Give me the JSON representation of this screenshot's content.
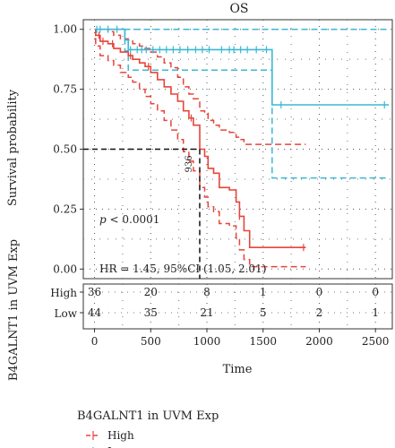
{
  "chart_data": {
    "type": "line",
    "title": "OS",
    "ylabel": "Survival probability",
    "xlabel": "Time",
    "xlim": [
      -100,
      2650
    ],
    "ylim": [
      -0.04,
      1.04
    ],
    "x_ticks": [
      "0",
      "500",
      "1000",
      "1500",
      "2000",
      "2500"
    ],
    "x_tick_values": [
      0,
      500,
      1000,
      1500,
      2000,
      2500
    ],
    "y_ticks": [
      "0.00",
      "0.25",
      "0.50",
      "0.75",
      "1.00"
    ],
    "y_tick_values": [
      0,
      0.25,
      0.5,
      0.75,
      1.0
    ],
    "grid": "dotted",
    "pvalue_prefix": "p",
    "pvalue_suffix": " < 0.0001",
    "hr_text": "HR = 1.45, 95%CI (1.05, 2.01)",
    "median_label": "936",
    "median_time": 936,
    "median_survival": 0.5,
    "series": [
      {
        "name": "High",
        "color": "#e8443a",
        "times": [
          0,
          10,
          50,
          120,
          170,
          230,
          300,
          340,
          400,
          450,
          500,
          560,
          620,
          680,
          740,
          790,
          840,
          880,
          936,
          980,
          1010,
          1060,
          1110,
          1200,
          1260,
          1290,
          1330,
          1380,
          1880
        ],
        "surv": [
          1.0,
          0.975,
          0.95,
          0.94,
          0.92,
          0.905,
          0.89,
          0.875,
          0.86,
          0.845,
          0.82,
          0.79,
          0.76,
          0.73,
          0.7,
          0.66,
          0.63,
          0.6,
          0.5,
          0.47,
          0.42,
          0.4,
          0.34,
          0.33,
          0.28,
          0.22,
          0.16,
          0.09,
          0.09
        ],
        "ci_upper": [
          1.0,
          1.0,
          1.0,
          0.99,
          0.975,
          0.96,
          0.955,
          0.94,
          0.93,
          0.92,
          0.905,
          0.885,
          0.86,
          0.84,
          0.8,
          0.76,
          0.73,
          0.71,
          0.66,
          0.65,
          0.62,
          0.6,
          0.58,
          0.57,
          0.55,
          0.54,
          0.52,
          0.52,
          0.52
        ],
        "ci_lower": [
          1.0,
          0.93,
          0.89,
          0.87,
          0.85,
          0.82,
          0.8,
          0.78,
          0.75,
          0.72,
          0.69,
          0.66,
          0.62,
          0.58,
          0.54,
          0.49,
          0.45,
          0.41,
          0.34,
          0.3,
          0.26,
          0.24,
          0.19,
          0.18,
          0.13,
          0.08,
          0.04,
          0.01,
          0.01
        ],
        "censor_times": [
          40,
          75,
          160,
          320,
          480,
          860,
          1290,
          1860
        ]
      },
      {
        "name": "Low",
        "color": "#3bb8d4",
        "times": [
          0,
          270,
          300,
          1580,
          2620
        ],
        "surv": [
          1.0,
          0.955,
          0.915,
          0.685,
          0.685
        ],
        "ci_upper": [
          1.0,
          1.0,
          1.0,
          1.0,
          1.0
        ],
        "ci_lower": [
          1.0,
          0.91,
          0.83,
          0.38,
          0.38
        ],
        "censor_times": [
          20,
          50,
          120,
          200,
          320,
          380,
          420,
          460,
          520,
          580,
          640,
          700,
          760,
          830,
          900,
          960,
          1020,
          1130,
          1200,
          1240,
          1300,
          1360,
          1440,
          1530,
          1660,
          2580
        ]
      }
    ]
  },
  "risk_table": {
    "title": "B4GALNT1 in UVM Exp",
    "rows": [
      {
        "label": "High",
        "color": "#e8443a",
        "counts": [
          "36",
          "20",
          "8",
          "1",
          "0",
          "0"
        ]
      },
      {
        "label": "Low",
        "color": "#3bb8d4",
        "counts": [
          "44",
          "35",
          "21",
          "5",
          "2",
          "1"
        ]
      }
    ]
  },
  "legend": {
    "title": "B4GALNT1 in UVM Exp",
    "items": [
      {
        "label": "High",
        "color": "#e8443a"
      },
      {
        "label": "Low",
        "color": "#3bb8d4"
      }
    ]
  }
}
